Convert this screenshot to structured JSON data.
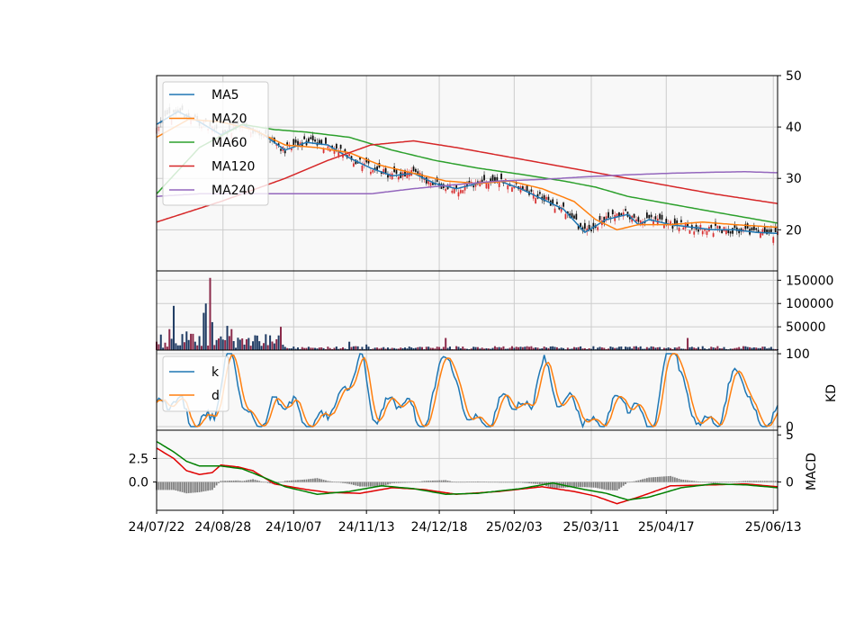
{
  "chart_data": {
    "type": "line",
    "x_tick_labels": [
      "24/07/22",
      "24/08/28",
      "24/10/07",
      "24/11/13",
      "24/12/18",
      "25/02/03",
      "25/03/11",
      "25/04/17",
      "25/06/13"
    ],
    "colors": {
      "background": "#f8f8f8",
      "grid": "#cccccc",
      "candle_up": "#d62728",
      "candle_down": "#000000",
      "volume_up": "#8b2a4a",
      "volume_down": "#1f3b63",
      "histogram": "#7f7f7f",
      "k": "#1f77b4",
      "d": "#ff7f0e",
      "macd_fast": "#e00000",
      "macd_slow": "#008000"
    },
    "panels": {
      "price": {
        "y_ticks": [
          "20",
          "30",
          "40",
          "50"
        ],
        "ylim": [
          12,
          50
        ],
        "series": [
          {
            "name": "MA5",
            "color": "#1f77b4",
            "x": [
              0,
              10,
              20,
              30,
              40,
              50,
              60,
              70,
              80,
              90,
              100,
              110,
              120,
              130,
              140,
              150,
              160,
              170,
              180,
              190,
              200,
              210,
              220,
              225,
              230,
              240,
              250,
              260,
              270,
              280,
              290
            ],
            "y": [
              40.5,
              43,
              41,
              38.5,
              40.5,
              38.5,
              35.5,
              37,
              36.5,
              34,
              32,
              30.5,
              31,
              29,
              28,
              29,
              29.5,
              28,
              26,
              24,
              19.5,
              22,
              23,
              21,
              22,
              21,
              20.5,
              20,
              20,
              19.5,
              19.3
            ]
          },
          {
            "name": "MA20",
            "color": "#ff7f0e",
            "x": [
              0,
              15,
              30,
              45,
              60,
              75,
              90,
              105,
              120,
              135,
              150,
              165,
              180,
              195,
              205,
              215,
              225,
              240,
              255,
              270,
              290
            ],
            "y": [
              38,
              41.5,
              41,
              39.5,
              36.5,
              36,
              35,
              32.5,
              31,
              29.5,
              29,
              29.5,
              28,
              25.5,
              22,
              20,
              21,
              21,
              21.5,
              21,
              20.5
            ]
          },
          {
            "name": "MA60",
            "color": "#2ca02c",
            "x": [
              0,
              20,
              40,
              55,
              70,
              90,
              110,
              130,
              150,
              170,
              190,
              205,
              220,
              240,
              260,
              290
            ],
            "y": [
              27,
              36,
              40.5,
              39.5,
              39,
              38,
              35.5,
              33.5,
              32,
              30.8,
              29.5,
              28.3,
              26.5,
              25,
              23.5,
              21.3
            ]
          },
          {
            "name": "MA120",
            "color": "#d62728",
            "x": [
              0,
              30,
              60,
              80,
              100,
              120,
              140,
              160,
              180,
              200,
              220,
              240,
              260,
              290
            ],
            "y": [
              21.5,
              25.5,
              30,
              33.5,
              36.5,
              37.3,
              36,
              34.5,
              33,
              31.5,
              30,
              28.5,
              27,
              25.1
            ]
          },
          {
            "name": "MA240",
            "color": "#9467bd",
            "x": [
              0,
              20,
              40,
              70,
              100,
              120,
              140,
              160,
              180,
              200,
              220,
              240,
              260,
              275,
              290
            ],
            "y": [
              26.5,
              27,
              27,
              27,
              27,
              28,
              28.8,
              29.5,
              29.8,
              30.3,
              30.7,
              31,
              31.2,
              31.3,
              31.1
            ]
          }
        ]
      },
      "volume": {
        "y_ticks": [
          "50000",
          "100000",
          "150000"
        ],
        "ylim": [
          0,
          170000
        ]
      },
      "kd": {
        "y_ticks": [
          "0",
          "100"
        ],
        "ylim": [
          -5,
          105
        ],
        "ylabel": "KD",
        "series_names": [
          "k",
          "d"
        ]
      },
      "macd": {
        "y_ticks_left": [
          "0.0",
          "2.5"
        ],
        "y_ticks_right": [
          "0",
          "5"
        ],
        "ylim": [
          -3,
          5.5
        ],
        "ylabel": "MACD",
        "fast": {
          "x": [
            0,
            8,
            14,
            20,
            26,
            30,
            38,
            45,
            55,
            70,
            80,
            95,
            110,
            125,
            140,
            160,
            180,
            195,
            205,
            215,
            225,
            240,
            260,
            275,
            290
          ],
          "y": [
            3.6,
            2.5,
            1.2,
            0.8,
            1.0,
            1.8,
            1.6,
            1.2,
            -0.2,
            -0.8,
            -1.1,
            -1.2,
            -0.6,
            -0.8,
            -1.3,
            -1.0,
            -0.5,
            -1.0,
            -1.5,
            -2.3,
            -1.6,
            -0.4,
            -0.3,
            -0.2,
            -0.5
          ]
        },
        "slow": {
          "x": [
            0,
            8,
            14,
            20,
            30,
            40,
            50,
            60,
            75,
            90,
            105,
            120,
            135,
            150,
            170,
            185,
            200,
            210,
            220,
            230,
            245,
            260,
            275,
            290
          ],
          "y": [
            4.3,
            3.2,
            2.2,
            1.7,
            1.7,
            1.4,
            0.5,
            -0.5,
            -1.3,
            -1.0,
            -0.4,
            -0.7,
            -1.3,
            -1.2,
            -0.7,
            -0.1,
            -0.8,
            -1.2,
            -1.9,
            -1.6,
            -0.6,
            -0.2,
            -0.3,
            -0.6
          ]
        }
      }
    },
    "legends": {
      "price": [
        "MA5",
        "MA20",
        "MA60",
        "MA120",
        "MA240"
      ],
      "kd": [
        "k",
        "d"
      ]
    },
    "grid": true,
    "legend_position": "top-left"
  }
}
